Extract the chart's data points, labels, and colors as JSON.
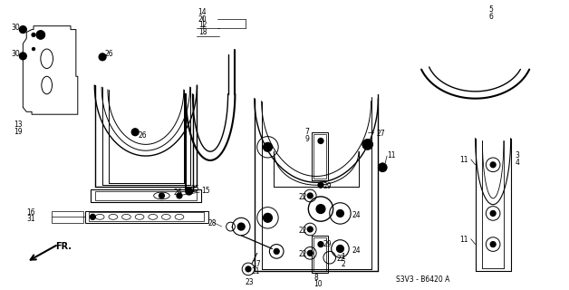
{
  "background_color": "#ffffff",
  "line_color": "#000000",
  "watermark": "S3V3 - B6420 A",
  "fr_label": "FR.",
  "figsize": [
    6.28,
    3.2
  ],
  "dpi": 100
}
